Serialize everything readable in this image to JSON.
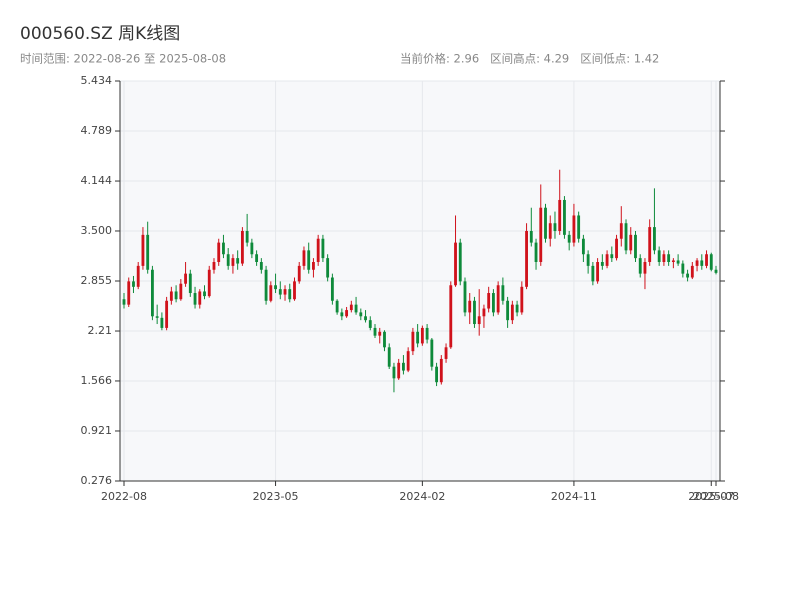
{
  "chart_data": {
    "type": "candlestick",
    "title": "000560.SZ 周K线图",
    "subtitle": "时间范围: 2022-08-26 至 2025-08-08",
    "info": "当前价格: 2.96   区间高点: 4.29   区间低点: 1.42",
    "up_color": "#d0121b",
    "down_color": "#0e8a3a",
    "ylim": [
      0.276,
      5.434
    ],
    "yticks": [
      0.276,
      0.921,
      1.566,
      2.21,
      2.855,
      {
        "value": 3.5,
        "label": "3.500"
      },
      4.144,
      4.789,
      5.434
    ],
    "xticks": [
      {
        "value": 0,
        "label": "2022-08"
      },
      {
        "value": 32,
        "label": "2023-05"
      },
      {
        "value": 63,
        "label": "2024-02"
      },
      {
        "value": 95,
        "label": "2024-11"
      },
      {
        "value": 124,
        "label": "2025-07"
      },
      {
        "value": 125,
        "label": "2025-08"
      }
    ],
    "grid": true,
    "ohlc": [
      [
        2.62,
        2.7,
        2.5,
        2.55
      ],
      [
        2.55,
        2.9,
        2.52,
        2.85
      ],
      [
        2.85,
        2.92,
        2.7,
        2.78
      ],
      [
        2.78,
        3.1,
        2.75,
        3.05
      ],
      [
        3.05,
        3.55,
        3.0,
        3.45
      ],
      [
        3.45,
        3.62,
        2.95,
        3.0
      ],
      [
        3.0,
        3.05,
        2.35,
        2.4
      ],
      [
        2.4,
        2.55,
        2.3,
        2.38
      ],
      [
        2.38,
        2.45,
        2.22,
        2.25
      ],
      [
        2.25,
        2.65,
        2.22,
        2.6
      ],
      [
        2.6,
        2.78,
        2.55,
        2.72
      ],
      [
        2.72,
        2.8,
        2.58,
        2.62
      ],
      [
        2.62,
        2.88,
        2.6,
        2.82
      ],
      [
        2.82,
        3.1,
        2.78,
        2.95
      ],
      [
        2.95,
        3.0,
        2.65,
        2.7
      ],
      [
        2.7,
        2.78,
        2.5,
        2.55
      ],
      [
        2.55,
        2.75,
        2.5,
        2.72
      ],
      [
        2.72,
        2.8,
        2.62,
        2.66
      ],
      [
        2.66,
        3.05,
        2.64,
        3.0
      ],
      [
        3.0,
        3.15,
        2.95,
        3.1
      ],
      [
        3.1,
        3.4,
        3.05,
        3.35
      ],
      [
        3.35,
        3.45,
        3.15,
        3.2
      ],
      [
        3.2,
        3.28,
        3.0,
        3.05
      ],
      [
        3.05,
        3.2,
        2.95,
        3.15
      ],
      [
        3.15,
        3.25,
        3.0,
        3.08
      ],
      [
        3.08,
        3.55,
        3.05,
        3.5
      ],
      [
        3.5,
        3.72,
        3.3,
        3.35
      ],
      [
        3.35,
        3.4,
        3.15,
        3.2
      ],
      [
        3.2,
        3.25,
        3.05,
        3.1
      ],
      [
        3.1,
        3.15,
        2.95,
        3.0
      ],
      [
        3.0,
        3.05,
        2.55,
        2.6
      ],
      [
        2.6,
        2.85,
        2.58,
        2.8
      ],
      [
        2.8,
        2.95,
        2.7,
        2.75
      ],
      [
        2.75,
        2.85,
        2.62,
        2.68
      ],
      [
        2.68,
        2.8,
        2.6,
        2.75
      ],
      [
        2.75,
        2.82,
        2.58,
        2.62
      ],
      [
        2.62,
        2.9,
        2.6,
        2.85
      ],
      [
        2.85,
        3.1,
        2.82,
        3.05
      ],
      [
        3.05,
        3.3,
        3.0,
        3.25
      ],
      [
        3.25,
        3.35,
        2.95,
        3.0
      ],
      [
        3.0,
        3.15,
        2.9,
        3.1
      ],
      [
        3.1,
        3.45,
        3.05,
        3.4
      ],
      [
        3.4,
        3.45,
        3.1,
        3.15
      ],
      [
        3.15,
        3.2,
        2.85,
        2.9
      ],
      [
        2.9,
        2.95,
        2.55,
        2.6
      ],
      [
        2.6,
        2.62,
        2.42,
        2.45
      ],
      [
        2.45,
        2.5,
        2.35,
        2.4
      ],
      [
        2.4,
        2.52,
        2.38,
        2.48
      ],
      [
        2.48,
        2.6,
        2.45,
        2.55
      ],
      [
        2.55,
        2.65,
        2.42,
        2.45
      ],
      [
        2.45,
        2.5,
        2.35,
        2.4
      ],
      [
        2.4,
        2.48,
        2.32,
        2.35
      ],
      [
        2.35,
        2.4,
        2.22,
        2.25
      ],
      [
        2.25,
        2.3,
        2.12,
        2.15
      ],
      [
        2.15,
        2.25,
        2.05,
        2.2
      ],
      [
        2.2,
        2.22,
        1.95,
        2.0
      ],
      [
        2.0,
        2.05,
        1.72,
        1.75
      ],
      [
        1.75,
        1.8,
        1.42,
        1.6
      ],
      [
        1.6,
        1.85,
        1.58,
        1.8
      ],
      [
        1.8,
        1.9,
        1.65,
        1.7
      ],
      [
        1.7,
        2.0,
        1.68,
        1.95
      ],
      [
        1.95,
        2.25,
        1.9,
        2.2
      ],
      [
        2.2,
        2.3,
        2.0,
        2.05
      ],
      [
        2.05,
        2.28,
        2.02,
        2.25
      ],
      [
        2.25,
        2.3,
        2.05,
        2.1
      ],
      [
        2.1,
        2.12,
        1.7,
        1.75
      ],
      [
        1.75,
        1.8,
        1.5,
        1.55
      ],
      [
        1.55,
        1.9,
        1.52,
        1.85
      ],
      [
        1.85,
        2.05,
        1.8,
        2.0
      ],
      [
        2.0,
        2.85,
        1.98,
        2.8
      ],
      [
        2.8,
        3.7,
        2.78,
        3.35
      ],
      [
        3.35,
        3.4,
        2.8,
        2.85
      ],
      [
        2.85,
        2.9,
        2.4,
        2.45
      ],
      [
        2.45,
        2.7,
        2.3,
        2.6
      ],
      [
        2.6,
        2.65,
        2.25,
        2.3
      ],
      [
        2.3,
        2.75,
        2.15,
        2.4
      ],
      [
        2.4,
        2.55,
        2.25,
        2.5
      ],
      [
        2.5,
        2.78,
        2.45,
        2.7
      ],
      [
        2.7,
        2.75,
        2.4,
        2.45
      ],
      [
        2.45,
        2.85,
        2.42,
        2.8
      ],
      [
        2.8,
        2.9,
        2.55,
        2.6
      ],
      [
        2.6,
        2.65,
        2.25,
        2.35
      ],
      [
        2.35,
        2.6,
        2.3,
        2.55
      ],
      [
        2.55,
        2.6,
        2.4,
        2.45
      ],
      [
        2.45,
        2.85,
        2.42,
        2.78
      ],
      [
        2.78,
        3.6,
        2.75,
        3.5
      ],
      [
        3.5,
        3.8,
        3.3,
        3.35
      ],
      [
        3.35,
        3.4,
        3.0,
        3.1
      ],
      [
        3.1,
        4.1,
        3.05,
        3.8
      ],
      [
        3.8,
        3.85,
        3.35,
        3.4
      ],
      [
        3.4,
        3.7,
        3.3,
        3.6
      ],
      [
        3.6,
        3.75,
        3.4,
        3.5
      ],
      [
        3.5,
        4.29,
        3.45,
        3.9
      ],
      [
        3.9,
        3.95,
        3.4,
        3.45
      ],
      [
        3.45,
        3.5,
        3.25,
        3.35
      ],
      [
        3.35,
        3.85,
        3.3,
        3.7
      ],
      [
        3.7,
        3.75,
        3.35,
        3.4
      ],
      [
        3.4,
        3.45,
        3.1,
        3.2
      ],
      [
        3.2,
        3.25,
        2.95,
        3.05
      ],
      [
        3.05,
        3.1,
        2.8,
        2.85
      ],
      [
        2.85,
        3.15,
        2.82,
        3.1
      ],
      [
        3.1,
        3.2,
        3.0,
        3.05
      ],
      [
        3.05,
        3.25,
        3.02,
        3.2
      ],
      [
        3.2,
        3.3,
        3.1,
        3.15
      ],
      [
        3.15,
        3.45,
        3.12,
        3.4
      ],
      [
        3.4,
        3.82,
        3.3,
        3.6
      ],
      [
        3.6,
        3.65,
        3.2,
        3.25
      ],
      [
        3.25,
        3.55,
        3.2,
        3.45
      ],
      [
        3.45,
        3.5,
        3.1,
        3.15
      ],
      [
        3.15,
        3.2,
        2.9,
        2.95
      ],
      [
        2.95,
        3.15,
        2.75,
        3.1
      ],
      [
        3.1,
        3.65,
        3.05,
        3.55
      ],
      [
        3.55,
        4.05,
        3.2,
        3.25
      ],
      [
        3.25,
        3.3,
        3.05,
        3.1
      ],
      [
        3.1,
        3.25,
        3.05,
        3.2
      ],
      [
        3.2,
        3.25,
        3.05,
        3.1
      ],
      [
        3.1,
        3.15,
        3.02,
        3.12
      ],
      [
        3.12,
        3.2,
        3.05,
        3.08
      ],
      [
        3.08,
        3.12,
        2.9,
        2.95
      ],
      [
        2.95,
        3.0,
        2.85,
        2.9
      ],
      [
        2.9,
        3.1,
        2.88,
        3.05
      ],
      [
        3.05,
        3.15,
        2.98,
        3.12
      ],
      [
        3.12,
        3.2,
        3.0,
        3.05
      ],
      [
        3.05,
        3.25,
        3.02,
        3.2
      ],
      [
        3.2,
        3.22,
        2.98,
        3.0
      ],
      [
        3.0,
        3.05,
        2.94,
        2.96
      ]
    ]
  }
}
